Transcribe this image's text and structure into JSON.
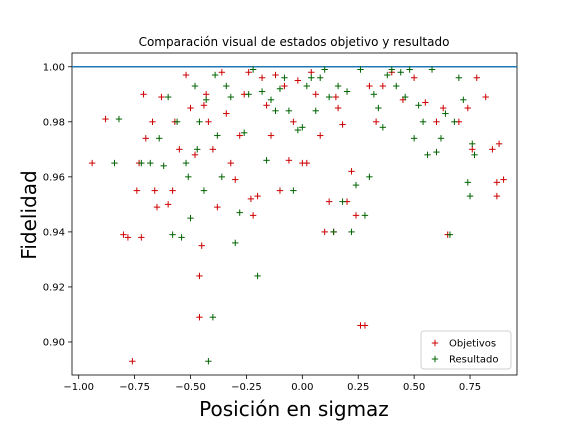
{
  "chart_data": {
    "type": "scatter",
    "title": "Comparación visual de estados objetivo y resultado",
    "xlabel": "Posición en sigmaz",
    "ylabel": "Fidelidad",
    "xlim": [
      -1.03,
      0.96
    ],
    "ylim": [
      0.888,
      1.005
    ],
    "xticks": [
      -1.0,
      -0.75,
      -0.5,
      -0.25,
      0.0,
      0.25,
      0.5,
      0.75
    ],
    "xtick_labels": [
      "−1.00",
      "−0.75",
      "−0.50",
      "−0.25",
      "0.00",
      "0.25",
      "0.50",
      "0.75"
    ],
    "yticks": [
      0.9,
      0.92,
      0.94,
      0.96,
      0.98,
      1.0
    ],
    "ytick_labels": [
      "0.90",
      "0.92",
      "0.94",
      "0.96",
      "0.98",
      "1.00"
    ],
    "reference_line": {
      "y": 1.0,
      "color": "#1f77b4"
    },
    "grid": false,
    "legend_position": "lower-right",
    "marker": "+",
    "series": [
      {
        "name": "Objetivos",
        "color": "#cc0000",
        "points": [
          [
            -0.94,
            0.965
          ],
          [
            -0.88,
            0.981
          ],
          [
            -0.8,
            0.939
          ],
          [
            -0.78,
            0.938
          ],
          [
            -0.76,
            0.893
          ],
          [
            -0.74,
            0.955
          ],
          [
            -0.73,
            0.965
          ],
          [
            -0.72,
            0.938
          ],
          [
            -0.71,
            0.99
          ],
          [
            -0.7,
            0.974
          ],
          [
            -0.67,
            0.98
          ],
          [
            -0.66,
            0.955
          ],
          [
            -0.65,
            0.949
          ],
          [
            -0.63,
            0.989
          ],
          [
            -0.6,
            0.95
          ],
          [
            -0.58,
            0.955
          ],
          [
            -0.57,
            0.98
          ],
          [
            -0.55,
            0.97
          ],
          [
            -0.52,
            0.997
          ],
          [
            -0.5,
            0.985
          ],
          [
            -0.48,
            0.968
          ],
          [
            -0.46,
            0.924
          ],
          [
            -0.46,
            0.909
          ],
          [
            -0.45,
            0.935
          ],
          [
            -0.44,
            0.986
          ],
          [
            -0.43,
            0.99
          ],
          [
            -0.42,
            0.98
          ],
          [
            -0.4,
            0.97
          ],
          [
            -0.38,
            0.949
          ],
          [
            -0.36,
            0.998
          ],
          [
            -0.34,
            0.983
          ],
          [
            -0.32,
            0.965
          ],
          [
            -0.3,
            0.959
          ],
          [
            -0.28,
            0.975
          ],
          [
            -0.26,
            0.99
          ],
          [
            -0.24,
            0.998
          ],
          [
            -0.23,
            0.952
          ],
          [
            -0.22,
            0.946
          ],
          [
            -0.2,
            0.953
          ],
          [
            -0.18,
            0.996
          ],
          [
            -0.16,
            0.986
          ],
          [
            -0.14,
            0.975
          ],
          [
            -0.12,
            0.997
          ],
          [
            -0.1,
            0.955
          ],
          [
            -0.08,
            0.993
          ],
          [
            -0.06,
            0.966
          ],
          [
            -0.04,
            0.98
          ],
          [
            -0.02,
            0.995
          ],
          [
            0.0,
            0.965
          ],
          [
            0.02,
            0.965
          ],
          [
            0.04,
            0.998
          ],
          [
            0.06,
            0.99
          ],
          [
            0.08,
            0.975
          ],
          [
            0.1,
            0.94
          ],
          [
            0.12,
            0.951
          ],
          [
            0.14,
            0.94
          ],
          [
            0.15,
            0.989
          ],
          [
            0.16,
            0.985
          ],
          [
            0.18,
            0.979
          ],
          [
            0.2,
            0.951
          ],
          [
            0.22,
            0.962
          ],
          [
            0.24,
            0.946
          ],
          [
            0.26,
            0.906
          ],
          [
            0.28,
            0.906
          ],
          [
            0.3,
            0.993
          ],
          [
            0.33,
            0.98
          ],
          [
            0.36,
            0.993
          ],
          [
            0.4,
            0.998
          ],
          [
            0.45,
            0.988
          ],
          [
            0.5,
            0.996
          ],
          [
            0.55,
            0.987
          ],
          [
            0.6,
            0.98
          ],
          [
            0.63,
            0.985
          ],
          [
            0.65,
            0.939
          ],
          [
            0.7,
            0.98
          ],
          [
            0.74,
            0.985
          ],
          [
            0.76,
            0.97
          ],
          [
            0.78,
            0.996
          ],
          [
            0.82,
            0.989
          ],
          [
            0.85,
            0.97
          ],
          [
            0.87,
            0.958
          ],
          [
            0.88,
            0.972
          ],
          [
            0.9,
            0.959
          ],
          [
            0.87,
            0.953
          ]
        ]
      },
      {
        "name": "Resultado",
        "color": "#006400",
        "points": [
          [
            -0.84,
            0.965
          ],
          [
            -0.82,
            0.981
          ],
          [
            -0.72,
            0.965
          ],
          [
            -0.68,
            0.965
          ],
          [
            -0.64,
            0.974
          ],
          [
            -0.62,
            0.964
          ],
          [
            -0.6,
            0.989
          ],
          [
            -0.58,
            0.939
          ],
          [
            -0.56,
            0.98
          ],
          [
            -0.54,
            0.938
          ],
          [
            -0.52,
            0.965
          ],
          [
            -0.51,
            0.96
          ],
          [
            -0.5,
            0.945
          ],
          [
            -0.48,
            0.993
          ],
          [
            -0.47,
            0.97
          ],
          [
            -0.46,
            0.98
          ],
          [
            -0.44,
            0.955
          ],
          [
            -0.43,
            0.988
          ],
          [
            -0.42,
            0.893
          ],
          [
            -0.4,
            0.909
          ],
          [
            -0.39,
            0.997
          ],
          [
            -0.38,
            0.975
          ],
          [
            -0.36,
            0.96
          ],
          [
            -0.34,
            0.993
          ],
          [
            -0.32,
            0.989
          ],
          [
            -0.3,
            0.936
          ],
          [
            -0.28,
            0.947
          ],
          [
            -0.26,
            0.976
          ],
          [
            -0.24,
            0.99
          ],
          [
            -0.22,
            0.999
          ],
          [
            -0.2,
            0.924
          ],
          [
            -0.18,
            0.991
          ],
          [
            -0.16,
            0.966
          ],
          [
            -0.14,
            0.988
          ],
          [
            -0.12,
            0.984
          ],
          [
            -0.1,
            0.992
          ],
          [
            -0.08,
            0.996
          ],
          [
            -0.06,
            0.984
          ],
          [
            -0.04,
            0.955
          ],
          [
            -0.02,
            0.977
          ],
          [
            0.0,
            0.978
          ],
          [
            0.02,
            0.993
          ],
          [
            0.04,
            0.996
          ],
          [
            0.06,
            0.984
          ],
          [
            0.08,
            0.996
          ],
          [
            0.1,
            0.999
          ],
          [
            0.12,
            0.989
          ],
          [
            0.14,
            0.94
          ],
          [
            0.16,
            0.993
          ],
          [
            0.18,
            0.951
          ],
          [
            0.2,
            0.991
          ],
          [
            0.22,
            0.94
          ],
          [
            0.24,
            0.957
          ],
          [
            0.26,
            0.999
          ],
          [
            0.28,
            0.946
          ],
          [
            0.3,
            0.96
          ],
          [
            0.32,
            0.99
          ],
          [
            0.34,
            0.985
          ],
          [
            0.36,
            0.978
          ],
          [
            0.38,
            0.997
          ],
          [
            0.4,
            0.999
          ],
          [
            0.42,
            0.993
          ],
          [
            0.44,
            0.998
          ],
          [
            0.46,
            0.989
          ],
          [
            0.48,
            0.999
          ],
          [
            0.5,
            0.974
          ],
          [
            0.52,
            0.986
          ],
          [
            0.54,
            0.98
          ],
          [
            0.56,
            0.968
          ],
          [
            0.58,
            0.999
          ],
          [
            0.6,
            0.969
          ],
          [
            0.62,
            0.974
          ],
          [
            0.64,
            0.983
          ],
          [
            0.66,
            0.939
          ],
          [
            0.68,
            0.98
          ],
          [
            0.7,
            0.996
          ],
          [
            0.72,
            0.988
          ],
          [
            0.74,
            0.958
          ],
          [
            0.75,
            0.953
          ],
          [
            0.76,
            0.972
          ],
          [
            0.77,
            0.968
          ]
        ]
      }
    ]
  }
}
